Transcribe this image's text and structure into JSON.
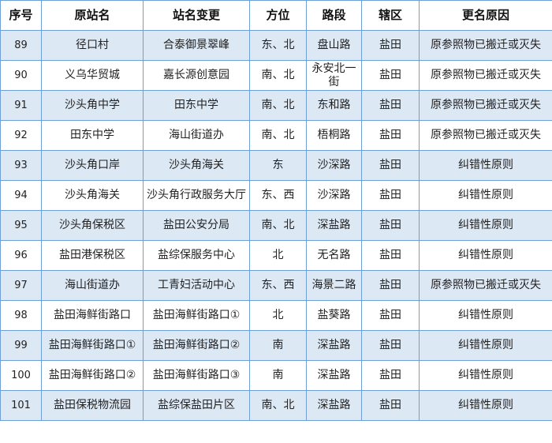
{
  "table": {
    "headers": [
      "序号",
      "原站名",
      "站名变更",
      "方位",
      "路段",
      "辖区",
      "更名原因"
    ],
    "rows": [
      [
        "89",
        "径口村",
        "合泰御景翠峰",
        "东、北",
        "盘山路",
        "盐田",
        "原参照物已搬迁或灭失"
      ],
      [
        "90",
        "义乌华贸城",
        "嘉长源创意园",
        "南、北",
        "永安北一街",
        "盐田",
        "原参照物已搬迁或灭失"
      ],
      [
        "91",
        "沙头角中学",
        "田东中学",
        "南、北",
        "东和路",
        "盐田",
        "原参照物已搬迁或灭失"
      ],
      [
        "92",
        "田东中学",
        "海山街道办",
        "南、北",
        "梧桐路",
        "盐田",
        "原参照物已搬迁或灭失"
      ],
      [
        "93",
        "沙头角口岸",
        "沙头角海关",
        "东",
        "沙深路",
        "盐田",
        "纠错性原则"
      ],
      [
        "94",
        "沙头角海关",
        "沙头角行政服务大厅",
        "东、西",
        "沙深路",
        "盐田",
        "纠错性原则"
      ],
      [
        "95",
        "沙头角保税区",
        "盐田公安分局",
        "南、北",
        "深盐路",
        "盐田",
        "纠错性原则"
      ],
      [
        "96",
        "盐田港保税区",
        "盐综保服务中心",
        "北",
        "无名路",
        "盐田",
        "纠错性原则"
      ],
      [
        "97",
        "海山街道办",
        "工青妇活动中心",
        "东、西",
        "海景二路",
        "盐田",
        "原参照物已搬迁或灭失"
      ],
      [
        "98",
        "盐田海鲜街路口",
        "盐田海鲜街路口①",
        "北",
        "盐葵路",
        "盐田",
        "纠错性原则"
      ],
      [
        "99",
        "盐田海鲜街路口①",
        "盐田海鲜街路口②",
        "南",
        "深盐路",
        "盐田",
        "纠错性原则"
      ],
      [
        "100",
        "盐田海鲜街路口②",
        "盐田海鲜街路口③",
        "南",
        "深盐路",
        "盐田",
        "纠错性原则"
      ],
      [
        "101",
        "盐田保税物流园",
        "盐综保盐田片区",
        "南、北",
        "深盐路",
        "盐田",
        "纠错性原则"
      ]
    ]
  },
  "colors": {
    "band": "#dde8f5",
    "border": "#6f9fd4"
  }
}
